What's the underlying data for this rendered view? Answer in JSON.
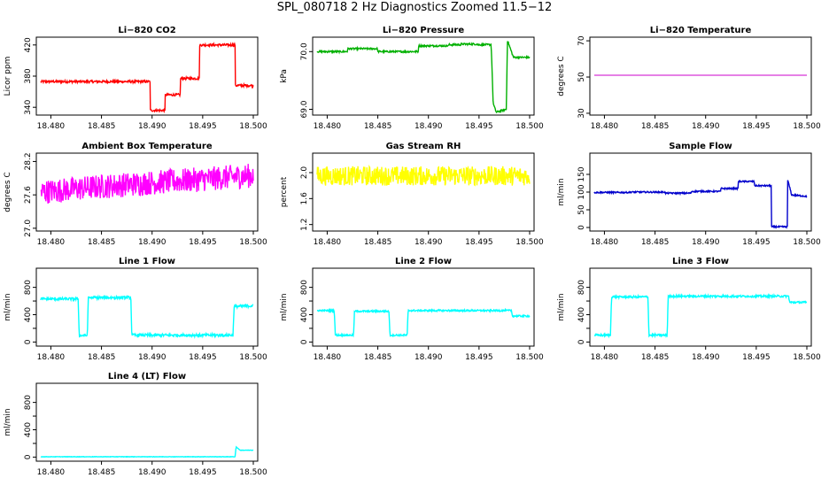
{
  "figure": {
    "title": "SPL_080718  2 Hz Diagnostics Zoomed 11.5−12"
  },
  "chart_data": [
    {
      "type": "line",
      "title": "Li−820 CO2",
      "ylabel": "Licor ppm",
      "color": "#ff0000",
      "xlim": [
        18.479,
        18.5
      ],
      "ylim": [
        330,
        430
      ],
      "yticks": [
        340,
        380,
        420
      ],
      "xticks": [
        "18.480",
        "18.485",
        "18.490",
        "18.495",
        "18.500"
      ],
      "noise": 1.5,
      "series": [
        {
          "x": [
            18.479,
            18.4898,
            18.4898,
            18.4913,
            18.4913,
            18.4928,
            18.4928,
            18.4947,
            18.4947,
            18.4982,
            18.4982,
            18.5
          ],
          "y": [
            373,
            373,
            336,
            336,
            356,
            356,
            377,
            377,
            420,
            420,
            368,
            368
          ]
        }
      ]
    },
    {
      "type": "line",
      "title": "Li−820 Pressure",
      "ylabel": "kPa",
      "color": "#00b000",
      "xlim": [
        18.479,
        18.5
      ],
      "ylim": [
        68.9,
        70.25
      ],
      "yticks": [
        69.0,
        70.0
      ],
      "ytickfmt": 1,
      "xticks": [
        "18.480",
        "18.485",
        "18.490",
        "18.495",
        "18.500"
      ],
      "noise": 0.015,
      "series": [
        {
          "x": [
            18.479,
            18.482,
            18.482,
            18.485,
            18.485,
            18.489,
            18.489,
            18.492,
            18.492,
            18.4932,
            18.4932,
            18.4948,
            18.4948,
            18.4962,
            18.4964,
            18.4967,
            18.4977,
            18.4978,
            18.4984,
            18.5
          ],
          "y": [
            70.0,
            70.0,
            70.05,
            70.05,
            70.0,
            70.0,
            70.1,
            70.1,
            70.12,
            70.12,
            70.13,
            70.13,
            70.12,
            70.12,
            69.1,
            68.95,
            69.0,
            70.2,
            69.9,
            69.9
          ]
        }
      ]
    },
    {
      "type": "line",
      "title": "Li−820 Temperature",
      "ylabel": "degrees C",
      "color": "#cc00cc",
      "xlim": [
        18.479,
        18.5
      ],
      "ylim": [
        29,
        72
      ],
      "yticks": [
        30,
        50,
        70
      ],
      "xticks": [
        "18.480",
        "18.485",
        "18.490",
        "18.495",
        "18.500"
      ],
      "noise": 0,
      "series": [
        {
          "x": [
            18.479,
            18.5
          ],
          "y": [
            51,
            51
          ]
        }
      ]
    },
    {
      "type": "line",
      "title": "Ambient Box Temperature",
      "ylabel": "degrees C",
      "color": "#ff00ff",
      "xlim": [
        18.479,
        18.5
      ],
      "ylim": [
        26.95,
        28.35
      ],
      "yticks": [
        27.0,
        27.6,
        28.2
      ],
      "ytickfmt": 1,
      "xticks": [
        "18.480",
        "18.485",
        "18.490",
        "18.495",
        "18.500"
      ],
      "noise": 0.22,
      "series": [
        {
          "x": [
            18.479,
            18.485,
            18.49,
            18.495,
            18.5
          ],
          "y": [
            27.65,
            27.75,
            27.82,
            27.88,
            27.95
          ]
        }
      ]
    },
    {
      "type": "line",
      "title": "Gas Stream RH",
      "ylabel": "percent",
      "color": "#ffff00",
      "xlim": [
        18.479,
        18.5
      ],
      "ylim": [
        1.1,
        2.3
      ],
      "yticks": [
        1.2,
        1.6,
        2.0
      ],
      "ytickfmt": 1,
      "xticks": [
        "18.480",
        "18.485",
        "18.490",
        "18.495",
        "18.500"
      ],
      "noise": 0.15,
      "series": [
        {
          "x": [
            18.479,
            18.5
          ],
          "y": [
            1.95,
            1.95
          ]
        }
      ]
    },
    {
      "type": "line",
      "title": "Sample Flow",
      "ylabel": "ml/min",
      "color": "#0000cc",
      "xlim": [
        18.479,
        18.5
      ],
      "ylim": [
        -10,
        210
      ],
      "yticks": [
        0,
        50,
        100,
        150
      ],
      "xticks": [
        "18.480",
        "18.485",
        "18.490",
        "18.495",
        "18.500"
      ],
      "noise": 2,
      "series": [
        {
          "x": [
            18.479,
            18.4825,
            18.4825,
            18.486,
            18.486,
            18.4886,
            18.4886,
            18.4915,
            18.4915,
            18.4932,
            18.4932,
            18.4948,
            18.4948,
            18.4965,
            18.4965,
            18.4981,
            18.4981,
            18.4985,
            18.5
          ],
          "y": [
            99,
            99,
            100,
            100,
            97,
            97,
            102,
            102,
            110,
            110,
            130,
            130,
            118,
            118,
            2,
            2,
            135,
            92,
            88
          ]
        }
      ]
    },
    {
      "type": "line",
      "title": "Line 1 Flow",
      "ylabel": "ml/min",
      "color": "#00ffff",
      "xlim": [
        18.479,
        18.5
      ],
      "ylim": [
        -60,
        1080
      ],
      "yticks": [
        0,
        200,
        400,
        600,
        800
      ],
      "ytickshow": [
        0,
        400,
        800
      ],
      "xticks": [
        "18.480",
        "18.485",
        "18.490",
        "18.495",
        "18.500"
      ],
      "noise": 20,
      "series": [
        {
          "x": [
            18.479,
            18.4827,
            18.4828,
            18.4836,
            18.4837,
            18.4879,
            18.488,
            18.498,
            18.4981,
            18.5
          ],
          "y": [
            630,
            630,
            95,
            95,
            650,
            650,
            100,
            100,
            520,
            530
          ]
        }
      ]
    },
    {
      "type": "line",
      "title": "Line 2 Flow",
      "ylabel": "ml/min",
      "color": "#00ffff",
      "xlim": [
        18.479,
        18.5
      ],
      "ylim": [
        -60,
        1080
      ],
      "yticks": [
        0,
        200,
        400,
        600,
        800
      ],
      "ytickshow": [
        0,
        400,
        800
      ],
      "xticks": [
        "18.480",
        "18.485",
        "18.490",
        "18.495",
        "18.500"
      ],
      "noise": 12,
      "series": [
        {
          "x": [
            18.479,
            18.4807,
            18.4808,
            18.4826,
            18.4827,
            18.4861,
            18.4862,
            18.4879,
            18.488,
            18.4982,
            18.4983,
            18.5
          ],
          "y": [
            460,
            460,
            100,
            100,
            450,
            450,
            100,
            100,
            460,
            460,
            380,
            380
          ]
        }
      ]
    },
    {
      "type": "line",
      "title": "Line 3 Flow",
      "ylabel": "ml/min",
      "color": "#00ffff",
      "xlim": [
        18.479,
        18.5
      ],
      "ylim": [
        -60,
        1080
      ],
      "yticks": [
        0,
        200,
        400,
        600,
        800
      ],
      "ytickshow": [
        0,
        400,
        800
      ],
      "xticks": [
        "18.480",
        "18.485",
        "18.490",
        "18.495",
        "18.500"
      ],
      "noise": 15,
      "series": [
        {
          "x": [
            18.479,
            18.4806,
            18.4807,
            18.4843,
            18.4844,
            18.4862,
            18.4863,
            18.4982,
            18.4983,
            18.5
          ],
          "y": [
            100,
            100,
            660,
            660,
            100,
            100,
            670,
            670,
            580,
            580
          ]
        }
      ]
    },
    {
      "type": "line",
      "title": "Line 4 (LT) Flow",
      "ylabel": "ml/min",
      "color": "#00ffff",
      "xlim": [
        18.479,
        18.5
      ],
      "ylim": [
        -60,
        1080
      ],
      "yticks": [
        0,
        200,
        400,
        600,
        800
      ],
      "ytickshow": [
        0,
        400,
        800
      ],
      "xticks": [
        "18.480",
        "18.485",
        "18.490",
        "18.495",
        "18.500"
      ],
      "noise": 3,
      "series": [
        {
          "x": [
            18.479,
            18.4982,
            18.4983,
            18.4987,
            18.5
          ],
          "y": [
            5,
            5,
            150,
            100,
            100
          ]
        }
      ]
    }
  ]
}
